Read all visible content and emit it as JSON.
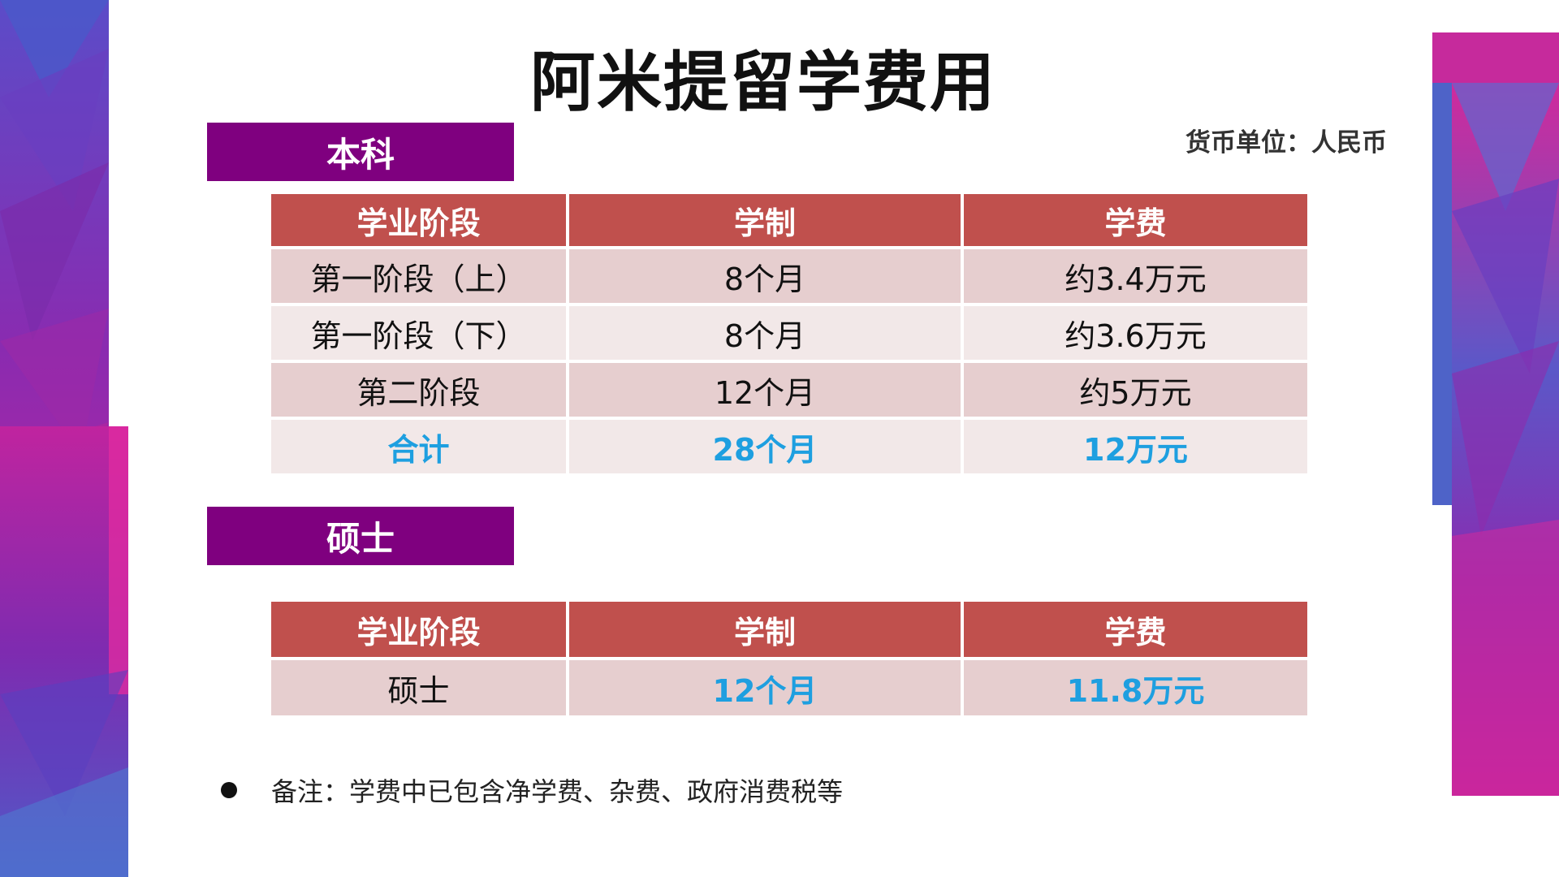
{
  "title": "阿米提留学费用",
  "currency_note": "货币单位：人民币",
  "undergraduate": {
    "label": "本科",
    "headers": [
      "学业阶段",
      "学制",
      "学费"
    ],
    "rows": [
      {
        "stage": "第一阶段（上）",
        "duration": "8个月",
        "fee": "约3.4万元"
      },
      {
        "stage": "第一阶段（下）",
        "duration": "8个月",
        "fee": "约3.6万元"
      },
      {
        "stage": "第二阶段",
        "duration": "12个月",
        "fee": "约5万元"
      }
    ],
    "total": {
      "stage": "合计",
      "duration": "28个月",
      "fee": "12万元"
    }
  },
  "master": {
    "label": "硕士",
    "headers": [
      "学业阶段",
      "学制",
      "学费"
    ],
    "rows": [
      {
        "stage": "硕士",
        "duration": "12个月",
        "fee": "11.8万元"
      }
    ]
  },
  "remark": "备注：学费中已包含净学费、杂费、政府消费税等",
  "colors": {
    "section_label_bg": "#7f007f",
    "table_header_bg": "#c0504d",
    "row_odd_bg": "#e6cecf",
    "row_even_bg": "#f2e8e8",
    "highlight_text": "#1e9fe0"
  }
}
